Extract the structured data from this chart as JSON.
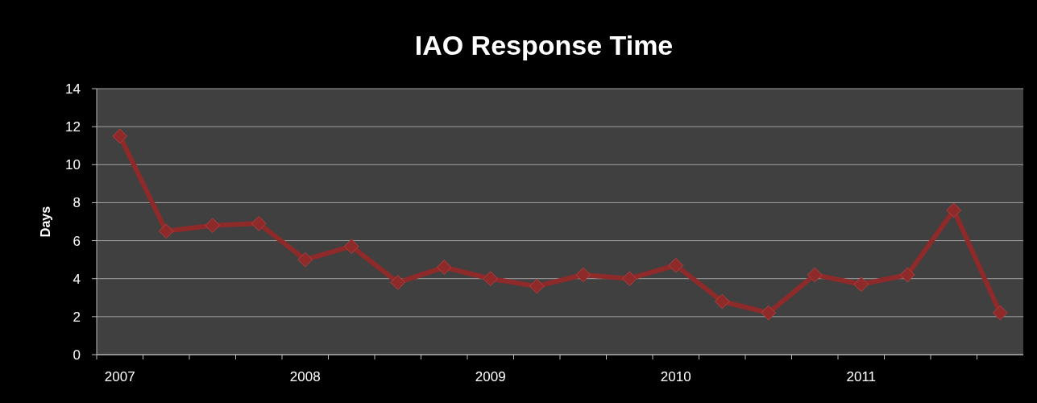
{
  "chart_data": {
    "type": "line",
    "title": "IAO Response Time",
    "ylabel": "Days",
    "categories": [
      "2007",
      null,
      null,
      null,
      "2008",
      null,
      null,
      null,
      "2009",
      null,
      null,
      null,
      "2010",
      null,
      null,
      null,
      "2011",
      null,
      null,
      null
    ],
    "series": [
      {
        "color": "#8e2a2a",
        "values": [
          11.5,
          6.5,
          6.8,
          6.9,
          5.0,
          5.7,
          3.8,
          4.6,
          4.0,
          3.6,
          4.2,
          4.0,
          4.7,
          2.8,
          2.2,
          4.2,
          3.7,
          4.2,
          7.6,
          2.2
        ]
      }
    ],
    "ylim": [
      0,
      14
    ],
    "yticks": [
      0,
      2,
      4,
      6,
      8,
      10,
      12,
      14
    ],
    "grid": "y",
    "marker": "diamond"
  }
}
